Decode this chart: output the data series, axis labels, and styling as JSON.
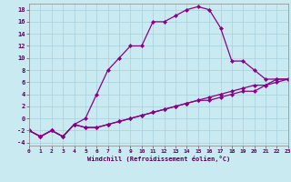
{
  "xlabel": "Windchill (Refroidissement éolien,°C)",
  "xlim": [
    0,
    23
  ],
  "ylim": [
    -4.5,
    19
  ],
  "xticks": [
    0,
    1,
    2,
    3,
    4,
    5,
    6,
    7,
    8,
    9,
    10,
    11,
    12,
    13,
    14,
    15,
    16,
    17,
    18,
    19,
    20,
    21,
    22,
    23
  ],
  "yticks": [
    -4,
    -2,
    0,
    2,
    4,
    6,
    8,
    10,
    12,
    14,
    16,
    18
  ],
  "bg_color": "#c8eaf0",
  "line_color": "#880088",
  "grid_color": "#a8d0dc",
  "line1_x": [
    0,
    1,
    2,
    3,
    4,
    5,
    6,
    7,
    8,
    9,
    10,
    11,
    12,
    13,
    14,
    15,
    16,
    17,
    18,
    19,
    20,
    21,
    22,
    23
  ],
  "line1_y": [
    -2,
    -3,
    -2,
    -3,
    -1,
    0,
    4,
    8,
    10,
    12,
    12,
    16,
    16,
    17,
    18,
    18.5,
    18,
    15,
    9.5,
    9.5,
    8,
    6.5,
    6.5,
    6.5
  ],
  "line2_x": [
    0,
    1,
    2,
    3,
    4,
    5,
    6,
    7,
    8,
    9,
    10,
    11,
    12,
    13,
    14,
    15,
    16,
    17,
    18,
    19,
    20,
    21,
    22,
    23
  ],
  "line2_y": [
    -2,
    -3,
    -2,
    -3,
    -1,
    -1.5,
    -1.5,
    -1,
    -0.5,
    0,
    0.5,
    1,
    1.5,
    2,
    2.5,
    3,
    3.5,
    4,
    4.5,
    5,
    5.5,
    5.5,
    6.5,
    6.5
  ],
  "line3_x": [
    0,
    1,
    2,
    3,
    4,
    5,
    6,
    7,
    8,
    9,
    10,
    11,
    12,
    13,
    14,
    15,
    16,
    17,
    18,
    19,
    20,
    21,
    22,
    23
  ],
  "line3_y": [
    -2,
    -3,
    -2,
    -3,
    -1,
    -1.5,
    -1.5,
    -1,
    -0.5,
    0,
    0.5,
    1,
    1.5,
    2,
    2.5,
    3,
    3,
    3.5,
    4,
    4.5,
    4.5,
    5.5,
    6,
    6.5
  ]
}
